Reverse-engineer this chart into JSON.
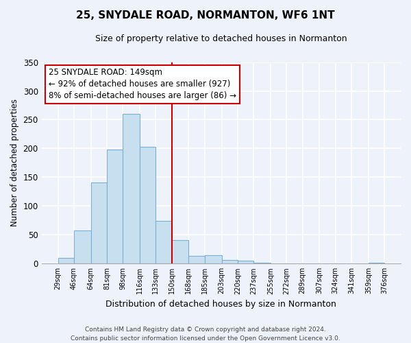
{
  "title": "25, SNYDALE ROAD, NORMANTON, WF6 1NT",
  "subtitle": "Size of property relative to detached houses in Normanton",
  "xlabel": "Distribution of detached houses by size in Normanton",
  "ylabel": "Number of detached properties",
  "bin_edges": [
    29,
    46,
    64,
    81,
    98,
    116,
    133,
    150,
    168,
    185,
    203,
    220,
    237,
    255,
    272,
    289,
    307,
    324,
    341,
    359,
    376
  ],
  "bin_labels": [
    "29sqm",
    "46sqm",
    "64sqm",
    "81sqm",
    "98sqm",
    "116sqm",
    "133sqm",
    "150sqm",
    "168sqm",
    "185sqm",
    "203sqm",
    "220sqm",
    "237sqm",
    "255sqm",
    "272sqm",
    "289sqm",
    "307sqm",
    "324sqm",
    "341sqm",
    "359sqm",
    "376sqm"
  ],
  "counts": [
    10,
    58,
    141,
    198,
    260,
    203,
    74,
    41,
    13,
    15,
    6,
    5,
    2,
    0,
    0,
    0,
    0,
    0,
    0,
    2
  ],
  "bar_color": "#c8dff0",
  "bar_edge_color": "#7aafd4",
  "vline_x": 150,
  "vline_color": "#cc0000",
  "ylim": [
    0,
    350
  ],
  "yticks": [
    0,
    50,
    100,
    150,
    200,
    250,
    300,
    350
  ],
  "annotation_title": "25 SNYDALE ROAD: 149sqm",
  "annotation_line1": "← 92% of detached houses are smaller (927)",
  "annotation_line2": "8% of semi-detached houses are larger (86) →",
  "annotation_box_color": "#ffffff",
  "annotation_box_edge": "#cc0000",
  "footer_line1": "Contains HM Land Registry data © Crown copyright and database right 2024.",
  "footer_line2": "Contains public sector information licensed under the Open Government Licence v3.0.",
  "bg_color": "#eef2fb",
  "plot_bg_color": "#eef2fb"
}
